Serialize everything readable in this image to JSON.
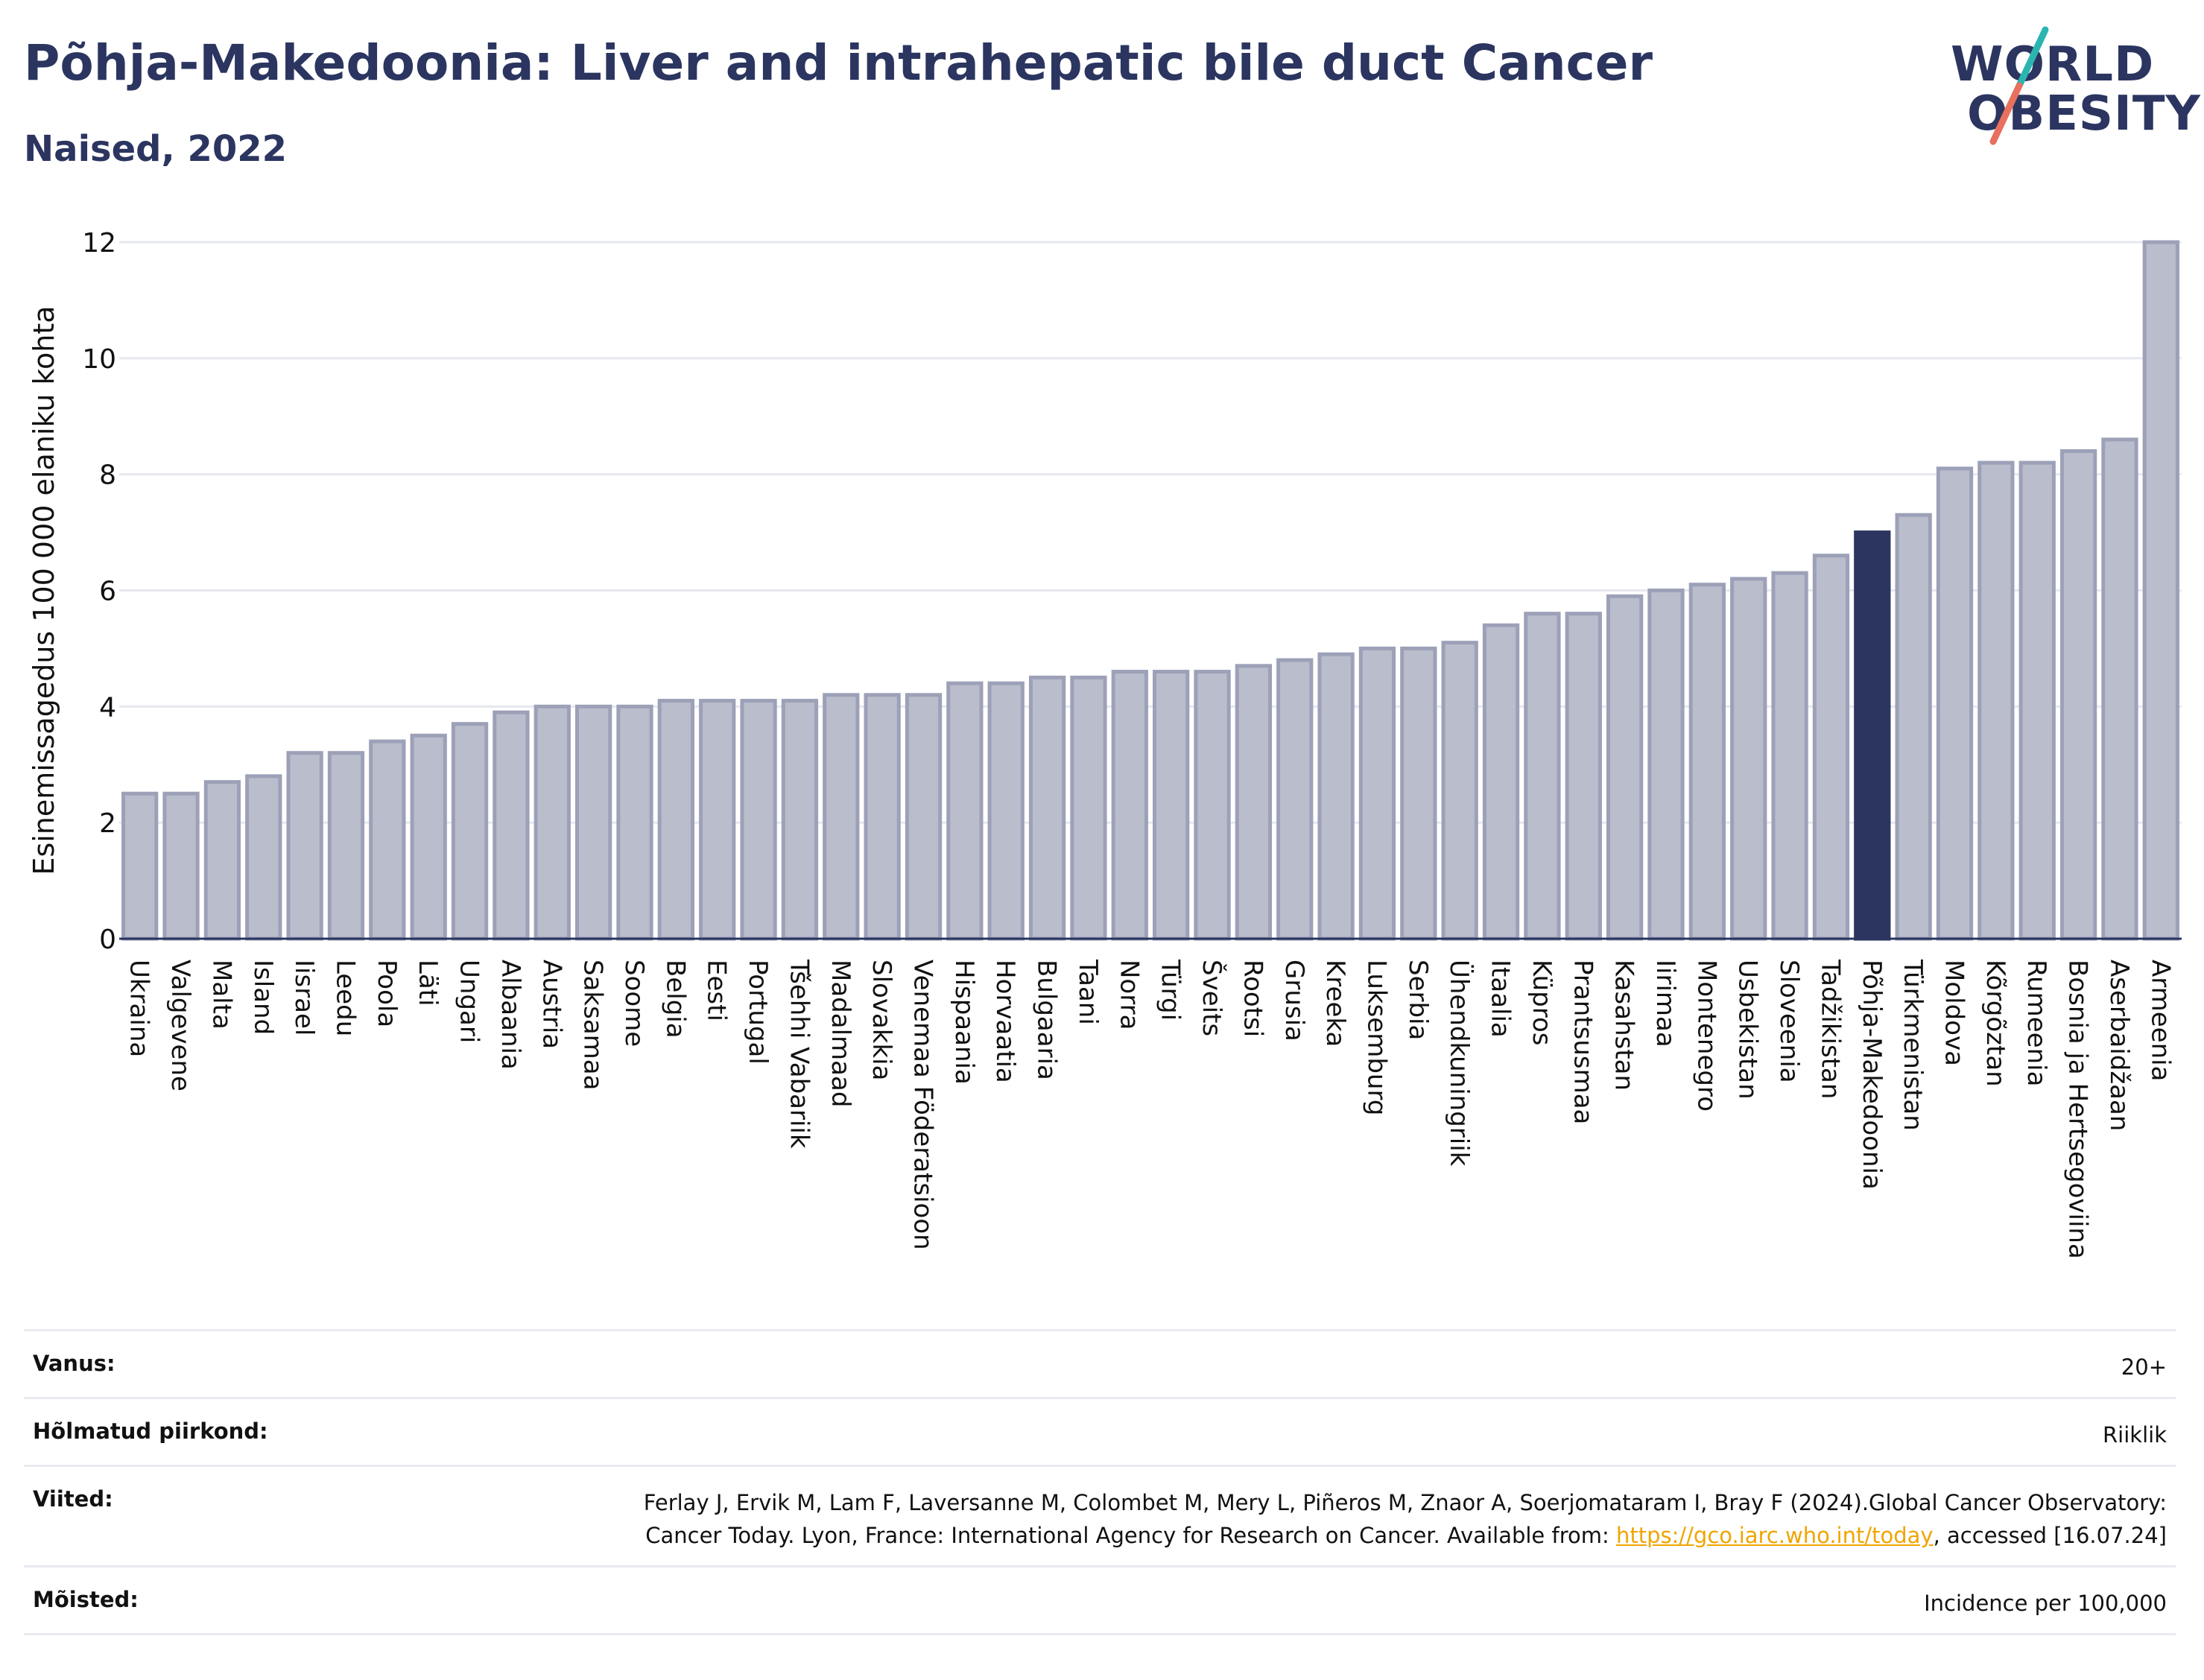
{
  "header": {
    "title": "Põhja-Makedoonia: Liver and intrahepatic bile duct Cancer",
    "subtitle": "Naised, 2022",
    "logo_line1": "WORLD",
    "logo_line2": "OBESITY"
  },
  "colors": {
    "bar": "#b9bdcc",
    "bar_border": "#9ca1b8",
    "highlight": "#2b3560",
    "grid": "#e6e8ef",
    "axis_line": "#2b3560",
    "text": "#2b3560",
    "link": "#f0a500",
    "logo_teal": "#2bb5b0",
    "logo_coral": "#e8705f"
  },
  "chart_data": {
    "type": "bar",
    "ylabel": "Esinemissagedus 100 000 elaniku kohta",
    "ylim": [
      0,
      12
    ],
    "yticks": [
      0,
      2,
      4,
      6,
      8,
      10,
      12
    ],
    "grid": true,
    "highlight_category": "Põhja-Makedoonia",
    "categories": [
      "Ukraina",
      "Valgevene",
      "Malta",
      "Island",
      "Iisrael",
      "Leedu",
      "Poola",
      "Läti",
      "Ungari",
      "Albaania",
      "Austria",
      "Saksamaa",
      "Soome",
      "Belgia",
      "Eesti",
      "Portugal",
      "Tšehhi Vabariik",
      "Madalmaad",
      "Slovakkia",
      "Venemaa Föderatsioon",
      "Hispaania",
      "Horvaatia",
      "Bulgaaria",
      "Taani",
      "Norra",
      "Türgi",
      "Šveits",
      "Rootsi",
      "Grusia",
      "Kreeka",
      "Luksemburg",
      "Serbia",
      "Ühendkuningriik",
      "Itaalia",
      "Küpros",
      "Prantsusmaa",
      "Kasahstan",
      "Iirimaa",
      "Montenegro",
      "Usbekistan",
      "Sloveenia",
      "Tadžikistan",
      "Põhja-Makedoonia",
      "Türkmenistan",
      "Moldova",
      "Kõrgõztan",
      "Rumeenia",
      "Bosnia ja Hertsegoviina",
      "Aserbaidžaan",
      "Armeenia"
    ],
    "values": [
      2.5,
      2.5,
      2.7,
      2.8,
      3.2,
      3.2,
      3.4,
      3.5,
      3.7,
      3.9,
      4.0,
      4.0,
      4.0,
      4.1,
      4.1,
      4.1,
      4.1,
      4.2,
      4.2,
      4.2,
      4.4,
      4.4,
      4.5,
      4.5,
      4.6,
      4.6,
      4.6,
      4.7,
      4.8,
      4.9,
      5.0,
      5.0,
      5.1,
      5.4,
      5.6,
      5.6,
      5.9,
      6.0,
      6.1,
      6.2,
      6.3,
      6.6,
      7.0,
      7.3,
      8.1,
      8.2,
      8.2,
      8.4,
      8.6,
      12.0
    ]
  },
  "info": [
    {
      "label": "Vanus:",
      "value": "20+"
    },
    {
      "label": "Hõlmatud piirkond:",
      "value": "Riiklik"
    },
    {
      "label": "Viited:",
      "value_before": "Ferlay J, Ervik M, Lam F, Laversanne M, Colombet M, Mery L, Piñeros M, Znaor A, Soerjomataram I, Bray F (2024).Global Cancer Observatory: Cancer Today. Lyon, France: International Agency for Research on Cancer. Available from: ",
      "link": "https://gco.iarc.who.int/today",
      "value_after": ", accessed [16.07.24]"
    },
    {
      "label": "Mõisted:",
      "value": "Incidence per 100,000"
    }
  ]
}
